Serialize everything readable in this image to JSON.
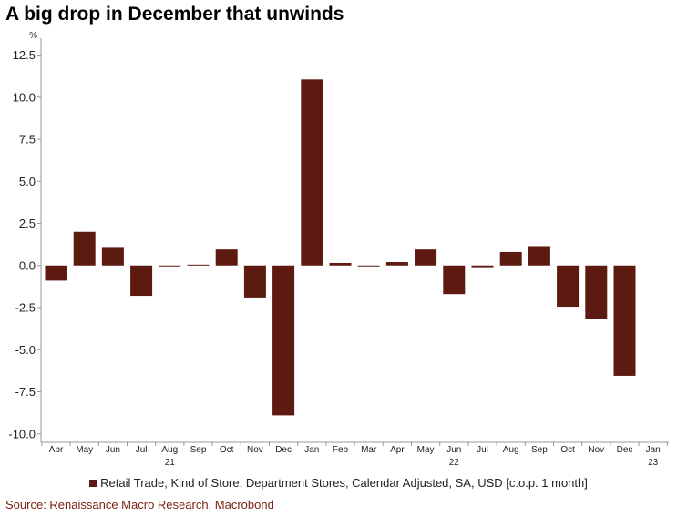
{
  "title": "A big drop in December that unwinds",
  "source": "Source: Renaissance Macro Research, Macrobond",
  "colors": {
    "bar": "#5c1a10",
    "source_text": "#7a1f10"
  },
  "chart_data": {
    "type": "bar",
    "title": "A big drop in December that unwinds",
    "ylabel": "%",
    "ylim": [
      -10.5,
      13.5
    ],
    "yticks": [
      "12.5",
      "10.0",
      "7.5",
      "5.0",
      "2.5",
      "0.0",
      "-2.5",
      "-5.0",
      "-7.5",
      "-10.0"
    ],
    "ytick_values": [
      12.5,
      10.0,
      7.5,
      5.0,
      2.5,
      0.0,
      -2.5,
      -5.0,
      -7.5,
      -10.0
    ],
    "categories": [
      "Apr",
      "May",
      "Jun",
      "Jul",
      "Aug",
      "Sep",
      "Oct",
      "Nov",
      "Dec",
      "Jan",
      "Feb",
      "Mar",
      "Apr",
      "May",
      "Jun",
      "Jul",
      "Aug",
      "Sep",
      "Oct",
      "Nov",
      "Dec",
      "Jan"
    ],
    "year_labels": [
      "",
      "",
      "",
      "",
      "21",
      "",
      "",
      "",
      "",
      "",
      "",
      "",
      "",
      "",
      "22",
      "",
      "",
      "",
      "",
      "",
      "",
      "23"
    ],
    "series": [
      {
        "name": "Retail Trade, Kind of Store, Department Stores, Calendar Adjusted, SA, USD [c.o.p. 1 month]",
        "values": [
          -0.9,
          2.0,
          1.1,
          -1.8,
          -0.05,
          0.05,
          0.95,
          -1.9,
          -8.9,
          11.05,
          0.15,
          -0.05,
          0.2,
          0.95,
          -1.7,
          -0.1,
          0.8,
          1.15,
          -2.45,
          -3.15,
          -6.55,
          null
        ]
      }
    ],
    "grid": false,
    "legend_position": "bottom"
  }
}
